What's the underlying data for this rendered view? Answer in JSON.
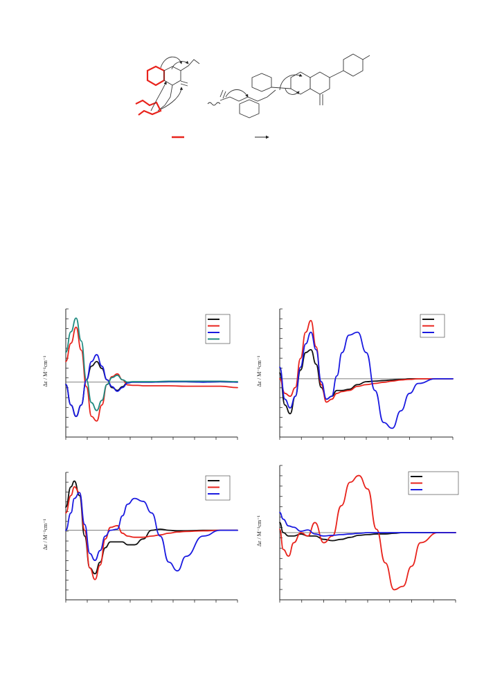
{
  "ylabel": "Δε / M⁻¹cm⁻¹",
  "scheme": {
    "bond_highlight_color": "#e8231c",
    "arrow_color": "#222222"
  },
  "colors": {
    "black": "#111111",
    "red": "#e8231c",
    "blue": "#1a1ae0",
    "teal": "#1f8a80"
  },
  "chart_data": [
    {
      "type": "line",
      "xlim": [
        0,
        1
      ],
      "ylim": [
        -1.2,
        1.6
      ],
      "legend": "top-right",
      "series": [
        {
          "color": "black",
          "x": [
            0,
            0.03,
            0.06,
            0.09,
            0.12,
            0.15,
            0.18,
            0.21,
            0.24,
            0.27,
            0.3,
            0.33,
            0.36,
            0.39,
            0.42,
            0.45,
            0.5,
            0.6,
            0.7,
            0.8,
            0.9,
            1.0
          ],
          "y": [
            -0.05,
            -0.5,
            -0.75,
            -0.5,
            0.05,
            0.35,
            0.45,
            0.3,
            0.05,
            -0.12,
            -0.18,
            -0.1,
            0.0,
            0.0,
            0.0,
            0.0,
            0.0,
            0.01,
            0.01,
            0.0,
            0.01,
            0.0
          ]
        },
        {
          "color": "red",
          "x": [
            0,
            0.03,
            0.06,
            0.09,
            0.12,
            0.15,
            0.18,
            0.21,
            0.24,
            0.27,
            0.3,
            0.33,
            0.36,
            0.39,
            0.42,
            0.45,
            0.5,
            0.6,
            0.7,
            0.8,
            0.9,
            1.0
          ],
          "y": [
            0.45,
            0.85,
            1.2,
            0.7,
            -0.1,
            -0.75,
            -0.85,
            -0.5,
            -0.05,
            0.12,
            0.18,
            0.05,
            -0.06,
            -0.07,
            -0.07,
            -0.08,
            -0.08,
            -0.08,
            -0.09,
            -0.09,
            -0.09,
            -0.12
          ]
        },
        {
          "color": "blue",
          "x": [
            0,
            0.03,
            0.06,
            0.09,
            0.12,
            0.15,
            0.18,
            0.21,
            0.24,
            0.27,
            0.3,
            0.33,
            0.36,
            0.39,
            0.42,
            0.45,
            0.5,
            0.6,
            0.7,
            0.8,
            0.9,
            1.0
          ],
          "y": [
            -0.05,
            -0.5,
            -0.75,
            -0.5,
            0.05,
            0.45,
            0.6,
            0.35,
            0.05,
            -0.1,
            -0.2,
            -0.12,
            -0.02,
            0.0,
            0.0,
            0.0,
            0.0,
            0.01,
            0.01,
            0.0,
            0.01,
            0.0
          ]
        },
        {
          "color": "teal",
          "x": [
            0,
            0.03,
            0.06,
            0.09,
            0.12,
            0.15,
            0.18,
            0.21,
            0.24,
            0.27,
            0.3,
            0.33,
            0.36,
            0.39,
            0.42,
            0.45,
            0.5,
            0.6,
            0.7,
            0.8,
            0.9,
            1.0
          ],
          "y": [
            0.65,
            1.1,
            1.4,
            0.9,
            0.05,
            -0.45,
            -0.62,
            -0.4,
            -0.05,
            0.1,
            0.15,
            0.05,
            0.0,
            0.01,
            0.01,
            0.01,
            0.01,
            0.02,
            0.02,
            0.02,
            0.02,
            0.01
          ]
        }
      ]
    },
    {
      "type": "line",
      "xlim": [
        0,
        1
      ],
      "ylim": [
        -1.0,
        1.2
      ],
      "legend": "top-right",
      "series": [
        {
          "color": "black",
          "x": [
            0,
            0.03,
            0.06,
            0.09,
            0.12,
            0.15,
            0.18,
            0.21,
            0.24,
            0.27,
            0.3,
            0.33,
            0.36,
            0.4,
            0.45,
            0.5,
            0.55,
            0.6,
            0.65,
            0.7,
            0.75,
            0.8,
            0.9,
            1.0
          ],
          "y": [
            0.1,
            -0.45,
            -0.6,
            -0.3,
            0.15,
            0.45,
            0.5,
            0.25,
            -0.15,
            -0.35,
            -0.3,
            -0.2,
            -0.2,
            -0.18,
            -0.1,
            -0.05,
            -0.04,
            -0.03,
            -0.02,
            -0.01,
            0.0,
            0.0,
            0.0,
            0.0
          ]
        },
        {
          "color": "red",
          "x": [
            0,
            0.03,
            0.06,
            0.09,
            0.12,
            0.15,
            0.18,
            0.21,
            0.24,
            0.27,
            0.3,
            0.33,
            0.36,
            0.4,
            0.45,
            0.5,
            0.55,
            0.6,
            0.65,
            0.7,
            0.75,
            0.8,
            0.9,
            1.0
          ],
          "y": [
            0.0,
            -0.25,
            -0.3,
            -0.15,
            0.35,
            0.8,
            1.0,
            0.55,
            -0.1,
            -0.4,
            -0.35,
            -0.25,
            -0.22,
            -0.2,
            -0.13,
            -0.1,
            -0.08,
            -0.06,
            -0.04,
            -0.02,
            -0.01,
            0.0,
            0.0,
            0.0
          ]
        },
        {
          "color": "blue",
          "x": [
            0,
            0.03,
            0.06,
            0.09,
            0.12,
            0.15,
            0.18,
            0.21,
            0.24,
            0.27,
            0.3,
            0.33,
            0.36,
            0.4,
            0.45,
            0.5,
            0.55,
            0.6,
            0.65,
            0.7,
            0.75,
            0.8,
            0.9,
            1.0
          ],
          "y": [
            0.2,
            -0.35,
            -0.5,
            -0.3,
            0.2,
            0.6,
            0.8,
            0.5,
            -0.05,
            -0.35,
            -0.3,
            0.05,
            0.45,
            0.75,
            0.8,
            0.45,
            -0.2,
            -0.75,
            -0.85,
            -0.55,
            -0.25,
            -0.08,
            0.0,
            0.0
          ]
        }
      ]
    },
    {
      "type": "line",
      "xlim": [
        0,
        1
      ],
      "ylim": [
        -1.2,
        1.0
      ],
      "legend": "top-right",
      "series": [
        {
          "color": "black",
          "x": [
            0,
            0.03,
            0.05,
            0.08,
            0.11,
            0.14,
            0.17,
            0.2,
            0.23,
            0.26,
            0.3,
            0.33,
            0.36,
            0.4,
            0.45,
            0.5,
            0.55,
            0.6,
            0.65,
            0.7,
            0.8,
            0.9,
            1.0
          ],
          "y": [
            0.4,
            0.75,
            0.85,
            0.6,
            -0.1,
            -0.65,
            -0.75,
            -0.55,
            -0.3,
            -0.2,
            -0.2,
            -0.2,
            -0.25,
            -0.25,
            -0.15,
            0.0,
            0.02,
            0.0,
            -0.01,
            -0.01,
            0.0,
            0.0,
            0.0
          ]
        },
        {
          "color": "red",
          "x": [
            0,
            0.03,
            0.05,
            0.08,
            0.11,
            0.14,
            0.17,
            0.2,
            0.23,
            0.26,
            0.3,
            0.33,
            0.36,
            0.4,
            0.45,
            0.5,
            0.55,
            0.6,
            0.65,
            0.7,
            0.8,
            0.9,
            1.0
          ],
          "y": [
            0.3,
            0.6,
            0.75,
            0.65,
            0.0,
            -0.65,
            -0.85,
            -0.6,
            -0.15,
            0.05,
            0.08,
            -0.05,
            -0.1,
            -0.12,
            -0.12,
            -0.1,
            -0.08,
            -0.05,
            -0.03,
            -0.02,
            -0.01,
            0.0,
            0.0
          ]
        },
        {
          "color": "blue",
          "x": [
            0,
            0.03,
            0.05,
            0.08,
            0.11,
            0.14,
            0.17,
            0.2,
            0.23,
            0.26,
            0.3,
            0.33,
            0.36,
            0.4,
            0.45,
            0.5,
            0.55,
            0.6,
            0.65,
            0.7,
            0.8,
            0.9,
            1.0
          ],
          "y": [
            0.0,
            0.3,
            0.55,
            0.65,
            0.1,
            -0.4,
            -0.52,
            -0.35,
            -0.1,
            0.0,
            0.02,
            0.25,
            0.45,
            0.55,
            0.5,
            0.3,
            -0.1,
            -0.55,
            -0.7,
            -0.45,
            -0.1,
            0.0,
            0.0
          ]
        }
      ]
    },
    {
      "type": "line",
      "xlim": [
        0,
        1
      ],
      "ylim": [
        -1.0,
        1.0
      ],
      "legend": "top-right",
      "series": [
        {
          "color": "black",
          "x": [
            0,
            0.02,
            0.05,
            0.08,
            0.12,
            0.16,
            0.2,
            0.25,
            0.3,
            0.35,
            0.4,
            0.45,
            0.5,
            0.55,
            0.6,
            0.65,
            0.7,
            0.75,
            0.8,
            0.9,
            1.0
          ],
          "y": [
            0.15,
            0.0,
            -0.05,
            -0.05,
            -0.02,
            -0.05,
            -0.05,
            -0.1,
            -0.12,
            -0.1,
            -0.07,
            -0.04,
            -0.03,
            -0.02,
            -0.02,
            -0.01,
            0.0,
            0.0,
            0.0,
            0.0,
            0.0
          ]
        },
        {
          "color": "red",
          "x": [
            0,
            0.02,
            0.05,
            0.08,
            0.12,
            0.16,
            0.2,
            0.25,
            0.3,
            0.35,
            0.4,
            0.45,
            0.5,
            0.55,
            0.6,
            0.65,
            0.7,
            0.75,
            0.8,
            0.9,
            1.0
          ],
          "y": [
            0.05,
            -0.25,
            -0.35,
            -0.15,
            0.0,
            -0.05,
            0.15,
            -0.15,
            -0.05,
            0.4,
            0.75,
            0.85,
            0.65,
            0.05,
            -0.45,
            -0.85,
            -0.8,
            -0.5,
            -0.15,
            0.0,
            0.0
          ]
        },
        {
          "color": "blue",
          "x": [
            0,
            0.02,
            0.05,
            0.08,
            0.12,
            0.16,
            0.2,
            0.25,
            0.3,
            0.35,
            0.4,
            0.45,
            0.5,
            0.55,
            0.6,
            0.65,
            0.7,
            0.75,
            0.8,
            0.9,
            1.0
          ],
          "y": [
            0.3,
            0.2,
            0.1,
            0.08,
            0.02,
            0.04,
            -0.02,
            -0.05,
            -0.04,
            -0.03,
            -0.02,
            -0.01,
            0.0,
            0.0,
            0.0,
            0.0,
            0.0,
            0.0,
            0.0,
            0.0,
            0.0
          ]
        }
      ]
    }
  ]
}
